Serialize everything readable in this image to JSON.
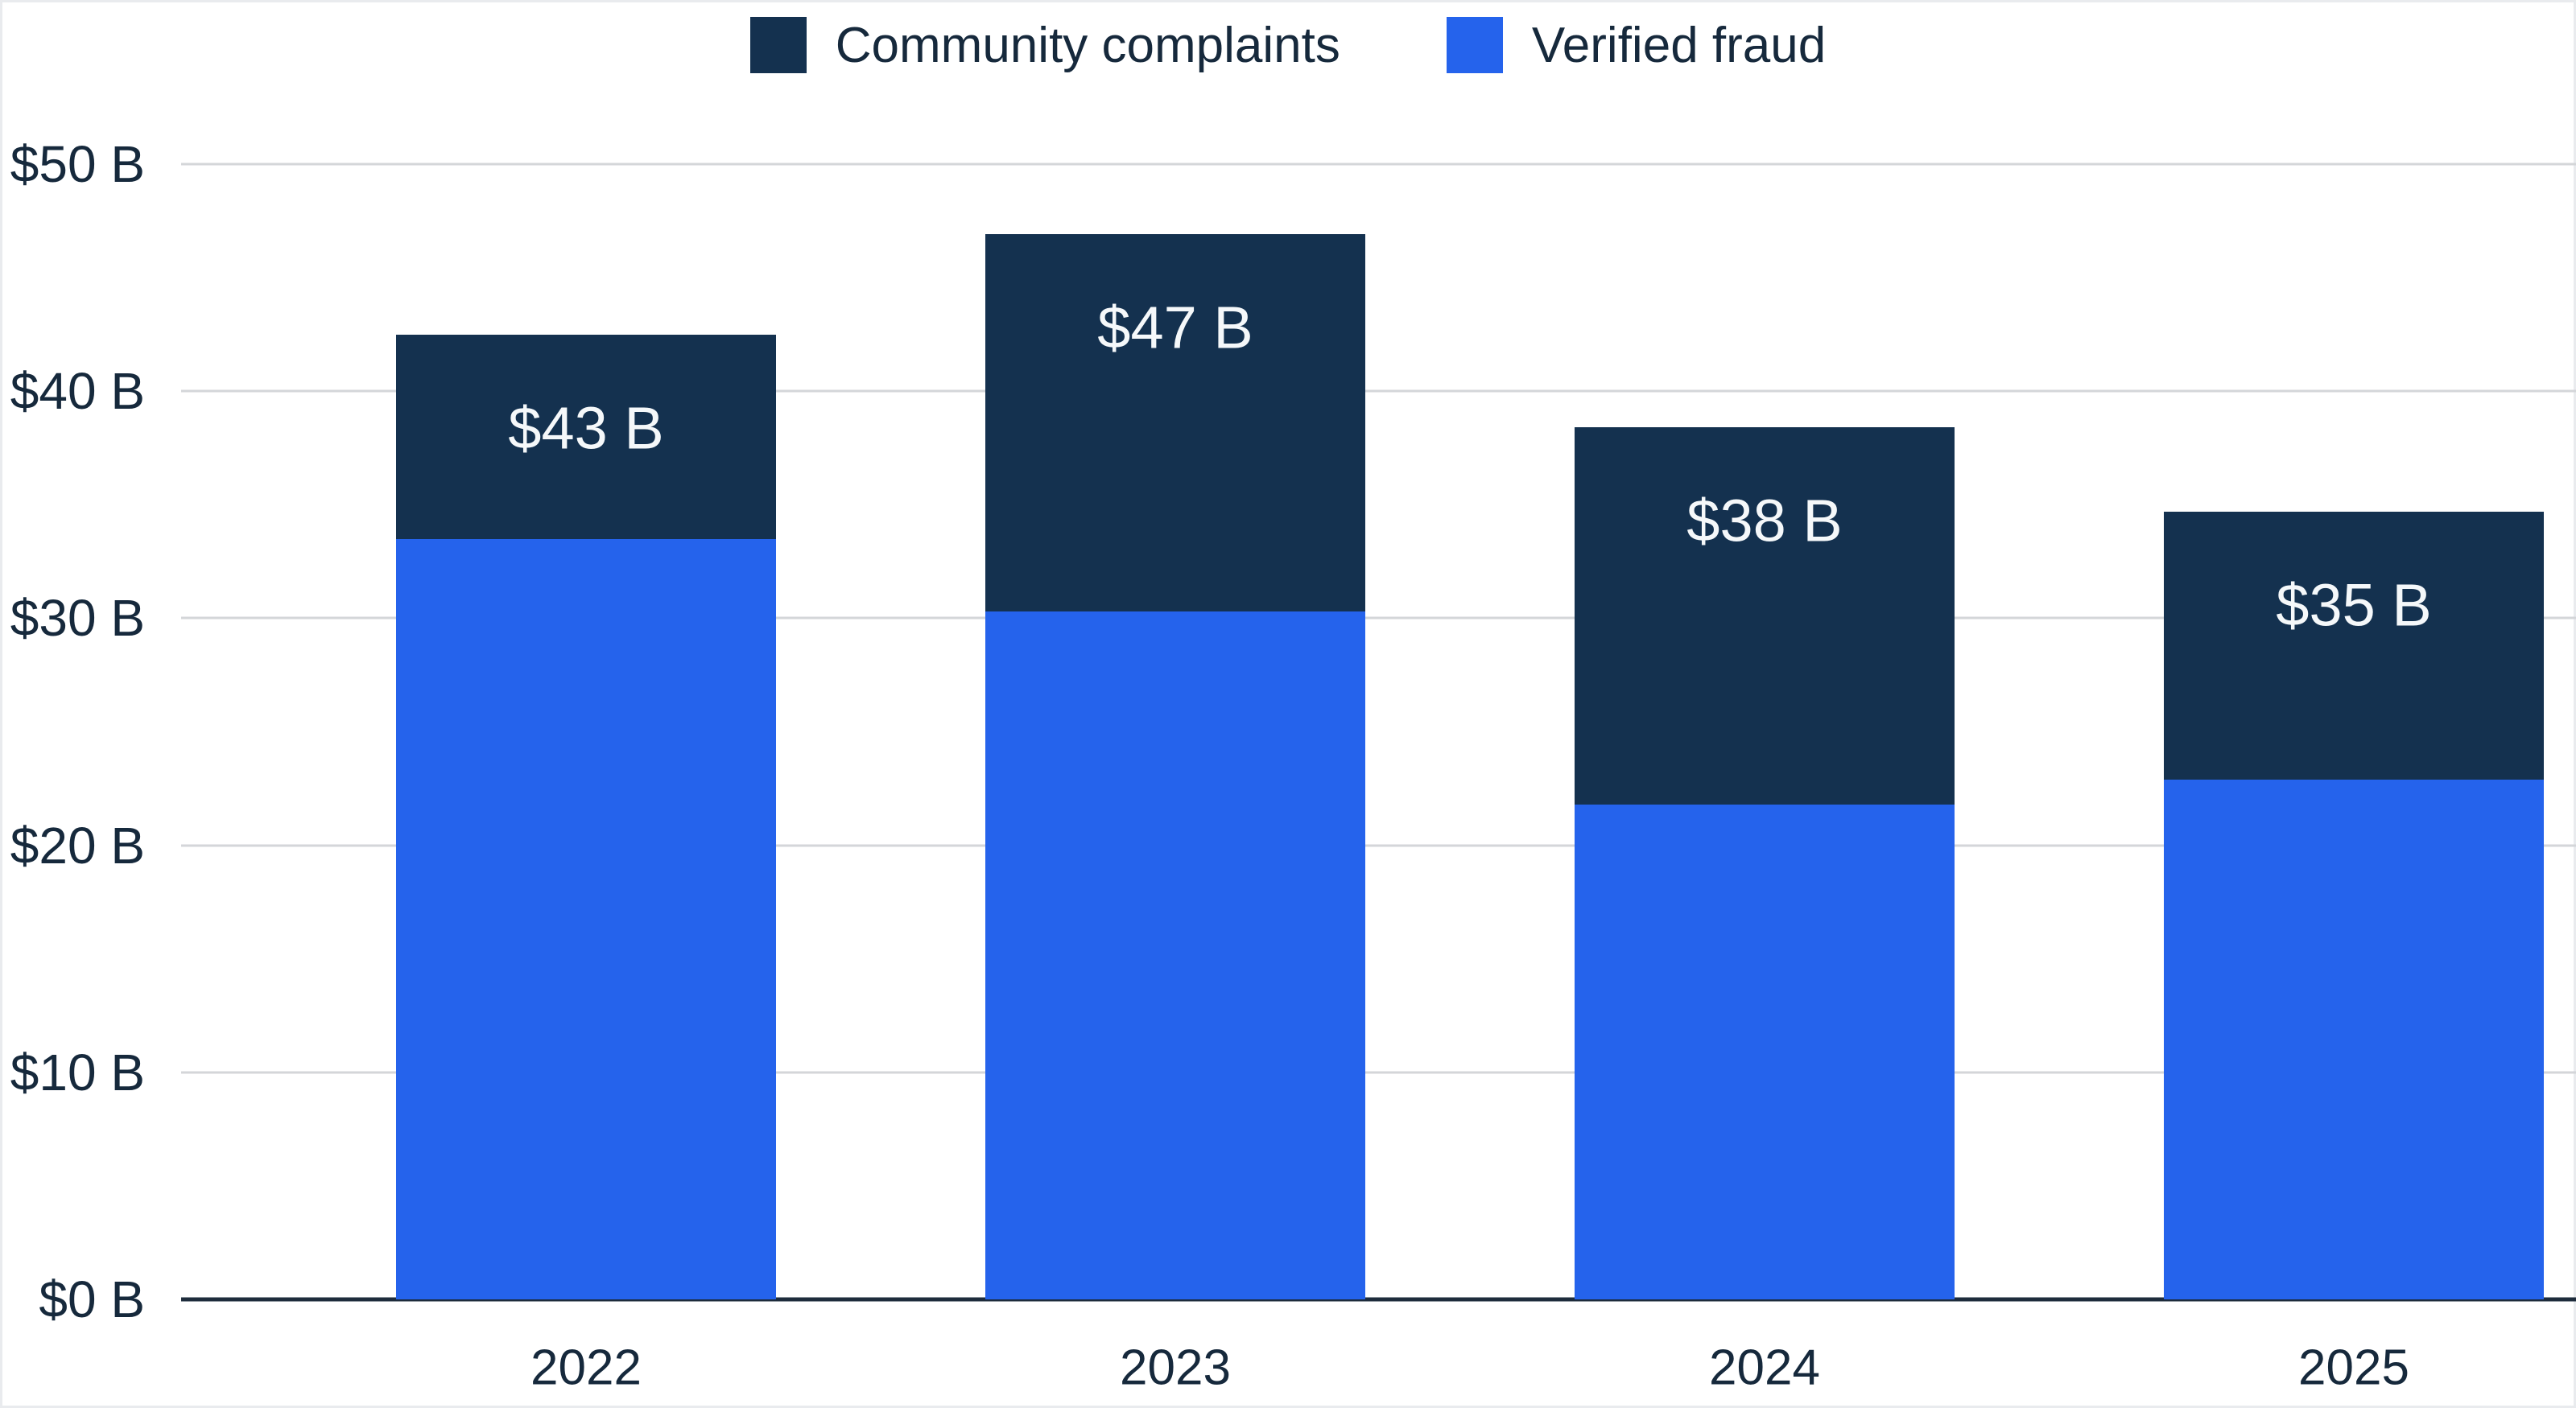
{
  "chart_data": {
    "type": "bar",
    "variant": "stacked",
    "title": "",
    "xlabel": "",
    "ylabel": "",
    "categories": [
      "2022",
      "2023",
      "2024",
      "2025"
    ],
    "series": [
      {
        "name": "Verified fraud",
        "color": "#2563ec",
        "values": [
          33.5,
          30.3,
          21.8,
          22.9
        ]
      },
      {
        "name": "Community complaints",
        "color": "#14314f",
        "values": [
          9.0,
          16.6,
          16.6,
          11.8
        ]
      }
    ],
    "totals": [
      42.5,
      46.9,
      38.4,
      34.7
    ],
    "total_labels": [
      "$43 B",
      "$47 B",
      "$38 B",
      "$35 B"
    ],
    "y_ticks": [
      {
        "value": 0,
        "label": "$0 B"
      },
      {
        "value": 10,
        "label": "$10 B"
      },
      {
        "value": 20,
        "label": "$20 B"
      },
      {
        "value": 30,
        "label": "$30 B"
      },
      {
        "value": 40,
        "label": "$40 B"
      },
      {
        "value": 50,
        "label": "$50 B"
      }
    ],
    "ylim": [
      0,
      50
    ],
    "grid": "horizontal",
    "legend_position": "top",
    "legend": [
      {
        "label": "Community complaints",
        "color": "#14314f"
      },
      {
        "label": "Verified fraud",
        "color": "#2563ec"
      }
    ],
    "colors": {
      "background": "#ffffff",
      "grid_line": "#d4d6d9",
      "axis_line": "#1e2c3c",
      "tick_text": "#16293c",
      "bar_label_text": "#f5f8fa",
      "border": "#e9ebee"
    }
  }
}
